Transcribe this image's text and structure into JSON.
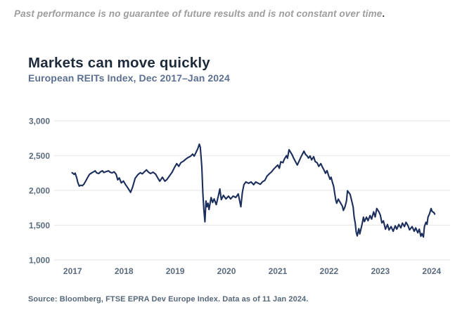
{
  "disclaimer": {
    "text": "Past performance is no guarantee of future results and is not constant over time",
    "period": "."
  },
  "header": {
    "title": "Markets can move quickly",
    "subtitle": "European REITs Index, Dec 2017–Jan 2024"
  },
  "source": {
    "text": "Source: Bloomberg, FTSE EPRA Dev Europe Index. Data as of 11 Jan 2024."
  },
  "colors": {
    "line": "#1c2e5c",
    "grid": "#e9eaec",
    "axis_label": "#5b6b7e",
    "title": "#1d2a3a",
    "subtitle": "#5b7090",
    "disclaimer": "#9d9d9d",
    "source": "#56677a"
  },
  "chart_data": {
    "type": "line",
    "title": "Markets can move quickly",
    "subtitle": "European REITs Index, Dec 2017–Jan 2024",
    "series_name": "FTSE EPRA Dev Europe Index",
    "xlabel": "",
    "ylabel": "",
    "legend": "none",
    "grid": "horizontal",
    "xlim": [
      2016.64,
      2024.36
    ],
    "ylim": [
      1000,
      3000
    ],
    "x_ticks": [
      {
        "value": 2017,
        "label": "2017"
      },
      {
        "value": 2018,
        "label": "2018"
      },
      {
        "value": 2019,
        "label": "2019"
      },
      {
        "value": 2020,
        "label": "2020"
      },
      {
        "value": 2021,
        "label": "2021"
      },
      {
        "value": 2022,
        "label": "2022"
      },
      {
        "value": 2023,
        "label": "2023"
      },
      {
        "value": 2024,
        "label": "2024"
      }
    ],
    "y_ticks": [
      {
        "value": 3000,
        "label": "3,000"
      },
      {
        "value": 2500,
        "label": "2,500"
      },
      {
        "value": 2000,
        "label": "2,000"
      },
      {
        "value": 1500,
        "label": "1,500"
      },
      {
        "value": 1000,
        "label": "1,000"
      }
    ],
    "points": [
      [
        2016.99,
        2255
      ],
      [
        2017.03,
        2230
      ],
      [
        2017.05,
        2248
      ],
      [
        2017.08,
        2180
      ],
      [
        2017.1,
        2120
      ],
      [
        2017.13,
        2062
      ],
      [
        2017.16,
        2075
      ],
      [
        2017.19,
        2068
      ],
      [
        2017.22,
        2090
      ],
      [
        2017.26,
        2140
      ],
      [
        2017.3,
        2195
      ],
      [
        2017.33,
        2230
      ],
      [
        2017.37,
        2252
      ],
      [
        2017.41,
        2268
      ],
      [
        2017.44,
        2282
      ],
      [
        2017.47,
        2252
      ],
      [
        2017.51,
        2242
      ],
      [
        2017.54,
        2265
      ],
      [
        2017.58,
        2282
      ],
      [
        2017.61,
        2258
      ],
      [
        2017.65,
        2270
      ],
      [
        2017.7,
        2282
      ],
      [
        2017.73,
        2262
      ],
      [
        2017.77,
        2252
      ],
      [
        2017.81,
        2268
      ],
      [
        2017.85,
        2230
      ],
      [
        2017.88,
        2152
      ],
      [
        2017.91,
        2180
      ],
      [
        2017.95,
        2108
      ],
      [
        2017.99,
        2135
      ],
      [
        2018.03,
        2085
      ],
      [
        2018.08,
        2032
      ],
      [
        2018.13,
        1972
      ],
      [
        2018.17,
        2048
      ],
      [
        2018.22,
        2175
      ],
      [
        2018.27,
        2225
      ],
      [
        2018.32,
        2255
      ],
      [
        2018.36,
        2238
      ],
      [
        2018.41,
        2275
      ],
      [
        2018.44,
        2295
      ],
      [
        2018.48,
        2262
      ],
      [
        2018.52,
        2242
      ],
      [
        2018.57,
        2262
      ],
      [
        2018.62,
        2232
      ],
      [
        2018.66,
        2180
      ],
      [
        2018.7,
        2132
      ],
      [
        2018.75,
        2190
      ],
      [
        2018.8,
        2132
      ],
      [
        2018.84,
        2158
      ],
      [
        2018.89,
        2210
      ],
      [
        2018.94,
        2262
      ],
      [
        2018.99,
        2335
      ],
      [
        2019.03,
        2385
      ],
      [
        2019.07,
        2345
      ],
      [
        2019.11,
        2398
      ],
      [
        2019.16,
        2420
      ],
      [
        2019.21,
        2452
      ],
      [
        2019.25,
        2472
      ],
      [
        2019.3,
        2492
      ],
      [
        2019.34,
        2522
      ],
      [
        2019.37,
        2492
      ],
      [
        2019.41,
        2552
      ],
      [
        2019.44,
        2598
      ],
      [
        2019.47,
        2665
      ],
      [
        2019.49,
        2622
      ],
      [
        2019.51,
        2430
      ],
      [
        2019.52,
        2330
      ],
      [
        2019.54,
        1950
      ],
      [
        2019.56,
        1720
      ],
      [
        2019.58,
        1548
      ],
      [
        2019.6,
        1848
      ],
      [
        2019.62,
        1765
      ],
      [
        2019.64,
        1815
      ],
      [
        2019.66,
        1725
      ],
      [
        2019.7,
        1898
      ],
      [
        2019.73,
        1826
      ],
      [
        2019.76,
        1878
      ],
      [
        2019.8,
        1796
      ],
      [
        2019.84,
        1918
      ],
      [
        2019.87,
        2020
      ],
      [
        2019.9,
        1867
      ],
      [
        2019.94,
        1929
      ],
      [
        2019.99,
        1878
      ],
      [
        2020.04,
        1918
      ],
      [
        2020.08,
        1878
      ],
      [
        2020.13,
        1918
      ],
      [
        2020.18,
        1898
      ],
      [
        2020.23,
        1949
      ],
      [
        2020.28,
        1765
      ],
      [
        2020.31,
        1969
      ],
      [
        2020.34,
        2082
      ],
      [
        2020.38,
        2122
      ],
      [
        2020.43,
        2102
      ],
      [
        2020.48,
        2122
      ],
      [
        2020.53,
        2082
      ],
      [
        2020.57,
        2122
      ],
      [
        2020.62,
        2102
      ],
      [
        2020.66,
        2088
      ],
      [
        2020.7,
        2122
      ],
      [
        2020.75,
        2145
      ],
      [
        2020.79,
        2205
      ],
      [
        2020.83,
        2235
      ],
      [
        2020.88,
        2268
      ],
      [
        2020.92,
        2305
      ],
      [
        2020.96,
        2335
      ],
      [
        2021.0,
        2365
      ],
      [
        2021.03,
        2318
      ],
      [
        2021.06,
        2412
      ],
      [
        2021.1,
        2398
      ],
      [
        2021.13,
        2452
      ],
      [
        2021.17,
        2500
      ],
      [
        2021.19,
        2462
      ],
      [
        2021.22,
        2585
      ],
      [
        2021.25,
        2548
      ],
      [
        2021.28,
        2512
      ],
      [
        2021.31,
        2462
      ],
      [
        2021.34,
        2420
      ],
      [
        2021.38,
        2365
      ],
      [
        2021.41,
        2412
      ],
      [
        2021.45,
        2478
      ],
      [
        2021.48,
        2520
      ],
      [
        2021.51,
        2565
      ],
      [
        2021.54,
        2520
      ],
      [
        2021.57,
        2498
      ],
      [
        2021.6,
        2465
      ],
      [
        2021.63,
        2495
      ],
      [
        2021.66,
        2438
      ],
      [
        2021.7,
        2485
      ],
      [
        2021.73,
        2415
      ],
      [
        2021.77,
        2395
      ],
      [
        2021.8,
        2345
      ],
      [
        2021.84,
        2385
      ],
      [
        2021.87,
        2335
      ],
      [
        2021.9,
        2295
      ],
      [
        2021.93,
        2245
      ],
      [
        2021.96,
        2285
      ],
      [
        2021.99,
        2215
      ],
      [
        2022.02,
        2160
      ],
      [
        2022.04,
        2190
      ],
      [
        2022.06,
        2130
      ],
      [
        2022.09,
        2055
      ],
      [
        2022.11,
        1960
      ],
      [
        2022.13,
        1865
      ],
      [
        2022.15,
        1815
      ],
      [
        2022.18,
        1875
      ],
      [
        2022.22,
        1825
      ],
      [
        2022.26,
        1772
      ],
      [
        2022.28,
        1712
      ],
      [
        2022.31,
        1762
      ],
      [
        2022.34,
        1850
      ],
      [
        2022.36,
        1995
      ],
      [
        2022.39,
        1965
      ],
      [
        2022.41,
        1945
      ],
      [
        2022.44,
        1855
      ],
      [
        2022.47,
        1760
      ],
      [
        2022.49,
        1615
      ],
      [
        2022.51,
        1530
      ],
      [
        2022.53,
        1400
      ],
      [
        2022.55,
        1345
      ],
      [
        2022.58,
        1450
      ],
      [
        2022.6,
        1375
      ],
      [
        2022.64,
        1502
      ],
      [
        2022.67,
        1615
      ],
      [
        2022.69,
        1552
      ],
      [
        2022.73,
        1615
      ],
      [
        2022.76,
        1565
      ],
      [
        2022.8,
        1638
      ],
      [
        2022.83,
        1588
      ],
      [
        2022.87,
        1692
      ],
      [
        2022.9,
        1618
      ],
      [
        2022.93,
        1740
      ],
      [
        2022.97,
        1695
      ],
      [
        2023.0,
        1645
      ],
      [
        2023.03,
        1532
      ],
      [
        2023.06,
        1562
      ],
      [
        2023.1,
        1442
      ],
      [
        2023.14,
        1510
      ],
      [
        2023.17,
        1430
      ],
      [
        2023.21,
        1480
      ],
      [
        2023.25,
        1412
      ],
      [
        2023.29,
        1492
      ],
      [
        2023.32,
        1442
      ],
      [
        2023.36,
        1510
      ],
      [
        2023.4,
        1462
      ],
      [
        2023.43,
        1530
      ],
      [
        2023.47,
        1480
      ],
      [
        2023.5,
        1542
      ],
      [
        2023.54,
        1492
      ],
      [
        2023.57,
        1432
      ],
      [
        2023.62,
        1480
      ],
      [
        2023.66,
        1412
      ],
      [
        2023.69,
        1462
      ],
      [
        2023.73,
        1390
      ],
      [
        2023.76,
        1442
      ],
      [
        2023.79,
        1340
      ],
      [
        2023.81,
        1380
      ],
      [
        2023.84,
        1330
      ],
      [
        2023.86,
        1480
      ],
      [
        2023.89,
        1542
      ],
      [
        2023.91,
        1512
      ],
      [
        2023.93,
        1615
      ],
      [
        2023.96,
        1665
      ],
      [
        2023.99,
        1740
      ],
      [
        2024.01,
        1695
      ],
      [
        2024.04,
        1685
      ],
      [
        2024.06,
        1660
      ]
    ]
  }
}
